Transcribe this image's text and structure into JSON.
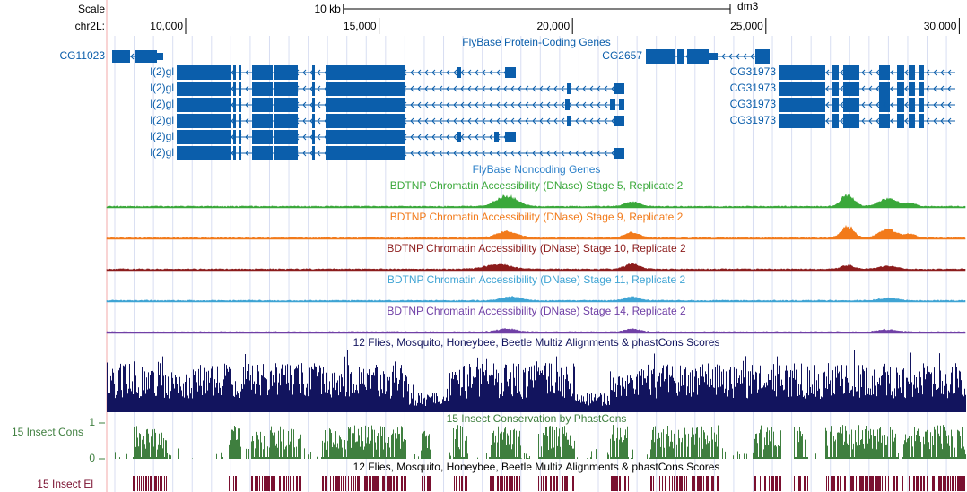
{
  "ruler": {
    "scale_label": "Scale",
    "chrom_label": "chr2L:",
    "scale_bar": {
      "value": 10000,
      "label": "10 kb"
    },
    "assembly": "dm3",
    "ticks": [
      {
        "value": 10000,
        "label": "10,000"
      },
      {
        "value": 15000,
        "label": "15,000"
      },
      {
        "value": 20000,
        "label": "20,000"
      },
      {
        "value": 25000,
        "label": "25,000"
      },
      {
        "value": 30000,
        "label": "30,000"
      }
    ]
  },
  "protein_coding": {
    "title": "FlyBase Protein-Coding Genes",
    "color": "#0b5eab",
    "gene_labels": [
      "CG11023",
      "CG2657",
      "l(2)gl",
      "l(2)gl",
      "l(2)gl",
      "l(2)gl",
      "l(2)gl",
      "l(2)gl",
      "CG31973",
      "CG31973",
      "CG31973",
      "CG31973"
    ]
  },
  "noncoding": {
    "title": "FlyBase Noncoding Genes",
    "color": "#2a7fc8"
  },
  "dnase": [
    {
      "title": "BDTNP Chromatin Accessibility (DNase) Stage 5, Replicate 2",
      "color": "#3aa83a"
    },
    {
      "title": "BDTNP Chromatin Accessibility (DNase) Stage 9, Replicate 2",
      "color": "#f27a1a"
    },
    {
      "title": "BDTNP Chromatin Accessibility (DNase) Stage 10, Replicate 2",
      "color": "#8c1c1c"
    },
    {
      "title": "BDTNP Chromatin Accessibility (DNase) Stage 11, Replicate 2",
      "color": "#3fa4d4"
    },
    {
      "title": "BDTNP Chromatin Accessibility (DNase) Stage 14, Replicate 2",
      "color": "#7040a6"
    }
  ],
  "multiz": {
    "title": "12 Flies, Mosquito, Honeybee, Beetle Multiz Alignments & phastCons Scores",
    "color": "#12145e"
  },
  "conservation": {
    "label": "15 Insect Cons",
    "title": "15 Insect Conservation by PhastCons",
    "color": "#3f7f3f",
    "ylim": [
      0,
      1
    ],
    "yticks": [
      1,
      0
    ]
  },
  "elements": {
    "label": "15 Insect El",
    "title": "12 Flies, Mosquito, Honeybee, Beetle Multiz Alignments & phastCons Scores",
    "color": "#7a1030"
  }
}
